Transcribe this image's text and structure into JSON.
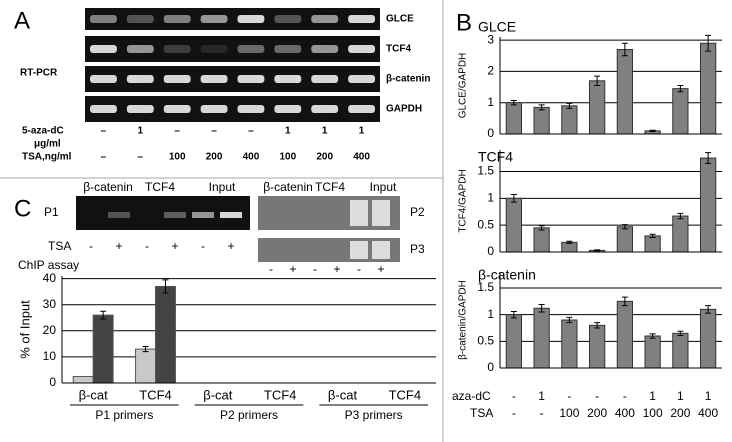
{
  "panel_a": {
    "letter": "A",
    "method": "RT-PCR",
    "genes": [
      "GLCE",
      "TCF4",
      "β-catenin",
      "GAPDH"
    ],
    "aza_label": "5-aza-dC",
    "aza_unit": "μg/ml",
    "tsa_label": "TSA,ng/ml",
    "aza": [
      "–",
      "1",
      "–",
      "–",
      "–",
      "1",
      "1",
      "1"
    ],
    "tsa": [
      "–",
      "–",
      "100",
      "200",
      "400",
      "100",
      "200",
      "400"
    ]
  },
  "panel_b": {
    "letter": "B",
    "aza_label": "aza-dC",
    "tsa_label": "TSA",
    "aza": [
      "-",
      "1",
      "-",
      "-",
      "-",
      "1",
      "1",
      "1"
    ],
    "tsa": [
      "-",
      "-",
      "100",
      "200",
      "400",
      "100",
      "200",
      "400"
    ]
  },
  "panel_c": {
    "letter": "C",
    "gel_titles": [
      "β-catenin",
      "TCF4",
      "Input"
    ],
    "gels": [
      "P1",
      "P2",
      "P3"
    ],
    "tsa_label": "TSA",
    "tsa_signs": [
      "-",
      "+",
      "-",
      "+",
      "-",
      "+"
    ],
    "assay": "ChIP assay",
    "group_labels": [
      "P1 primers",
      "P2 primers",
      "P3 primers"
    ]
  },
  "chart_data": [
    {
      "type": "bar",
      "title": "GLCE",
      "ylabel": "GLCE/GAPDH",
      "values": [
        1.0,
        0.85,
        0.9,
        1.7,
        2.7,
        0.1,
        1.45,
        2.9
      ],
      "errors": [
        0.07,
        0.08,
        0.08,
        0.15,
        0.2,
        0.02,
        0.1,
        0.25
      ],
      "color": "#808080",
      "ylim": [
        0,
        3.1
      ],
      "yticks": [
        0,
        1,
        2,
        3
      ],
      "grid": true
    },
    {
      "type": "bar",
      "title": "TCF4",
      "ylabel": "TCF4/GAPDH",
      "values": [
        1.0,
        0.45,
        0.18,
        0.03,
        0.47,
        0.3,
        0.67,
        1.75
      ],
      "errors": [
        0.07,
        0.04,
        0.02,
        0.01,
        0.04,
        0.03,
        0.05,
        0.1
      ],
      "color": "#808080",
      "ylim": [
        0,
        1.9
      ],
      "yticks": [
        0,
        0.5,
        1,
        1.5
      ],
      "grid": true
    },
    {
      "type": "bar",
      "title": "β-catenin",
      "ylabel": "β-catenin/GAPDH",
      "values": [
        1.0,
        1.12,
        0.9,
        0.8,
        1.25,
        0.6,
        0.65,
        1.1
      ],
      "errors": [
        0.06,
        0.07,
        0.05,
        0.05,
        0.08,
        0.04,
        0.04,
        0.07
      ],
      "color": "#808080",
      "ylim": [
        0,
        1.8
      ],
      "yticks": [
        0,
        0.5,
        1,
        1.5
      ],
      "grid": true
    },
    {
      "type": "grouped-bar",
      "ylabel": "% of Input",
      "categories": [
        "β-cat",
        "TCF4",
        "β-cat",
        "TCF4",
        "β-cat",
        "TCF4"
      ],
      "series": [
        {
          "color": "#c8c8c8",
          "values": [
            2.5,
            13,
            0,
            0,
            0,
            0
          ],
          "errors": [
            null,
            1,
            null,
            null,
            null,
            null
          ]
        },
        {
          "color": "#444444",
          "values": [
            26,
            37,
            0,
            0,
            0,
            0
          ],
          "errors": [
            1.5,
            2.5,
            null,
            null,
            null,
            null
          ]
        }
      ],
      "ylim": [
        0,
        41
      ],
      "yticks": [
        0,
        10,
        20,
        30,
        40
      ],
      "grid": true
    }
  ]
}
